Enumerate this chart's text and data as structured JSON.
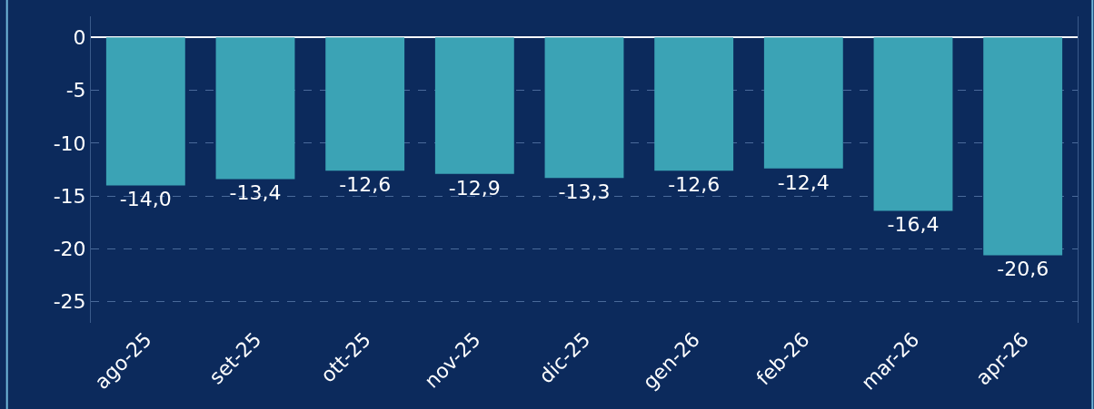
{
  "chart_data": {
    "type": "bar",
    "categories": [
      "ago-25",
      "set-25",
      "ott-25",
      "nov-25",
      "dic-25",
      "gen-26",
      "feb-26",
      "mar-26",
      "apr-26"
    ],
    "values": [
      -14.0,
      -13.4,
      -12.6,
      -12.9,
      -13.3,
      -12.6,
      -12.4,
      -16.4,
      -20.6
    ],
    "value_labels": [
      "-14,0",
      "-13,4",
      "-12,6",
      "-12,9",
      "-13,3",
      "-12,6",
      "-12,4",
      "-16,4",
      "-20,6"
    ],
    "color": "#3ba3b5",
    "ylim": [
      -27,
      2
    ],
    "yticks": [
      0,
      -5,
      -10,
      -15,
      -20,
      -25
    ],
    "grid": "y"
  }
}
